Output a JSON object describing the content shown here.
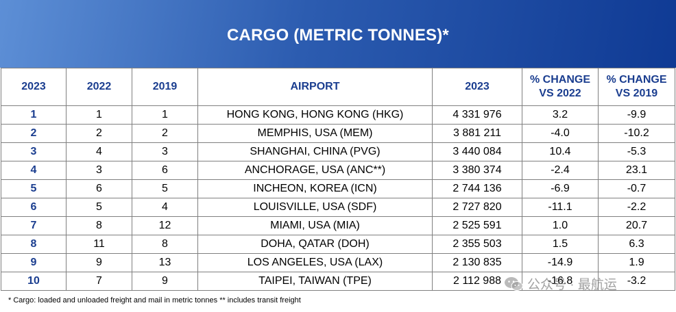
{
  "title": "CARGO (METRIC TONNES)*",
  "columns": [
    "2023",
    "2022",
    "2019",
    "AIRPORT",
    "2023",
    "% CHANGE\nVS 2022",
    "% CHANGE\nVS 2019"
  ],
  "rows": [
    [
      "1",
      "1",
      "1",
      "HONG KONG, HONG KONG (HKG)",
      "4 331 976",
      "3.2",
      "-9.9"
    ],
    [
      "2",
      "2",
      "2",
      "MEMPHIS,  USA (MEM)",
      "3 881 211",
      "-4.0",
      "-10.2"
    ],
    [
      "3",
      "4",
      "3",
      "SHANGHAI, CHINA (PVG)",
      "3 440 084",
      "10.4",
      "-5.3"
    ],
    [
      "4",
      "3",
      "6",
      "ANCHORAGE, USA (ANC**)",
      "3 380 374",
      "-2.4",
      "23.1"
    ],
    [
      "5",
      "6",
      "5",
      "INCHEON, KOREA (ICN)",
      "2 744 136",
      "-6.9",
      "-0.7"
    ],
    [
      "6",
      "5",
      "4",
      "LOUISVILLE,  USA (SDF)",
      "2 727 820",
      "-11.1",
      "-2.2"
    ],
    [
      "7",
      "8",
      "12",
      "MIAMI,  USA (MIA)",
      "2 525 591",
      "1.0",
      "20.7"
    ],
    [
      "8",
      "11",
      "8",
      "DOHA, QATAR (DOH)",
      "2 355 503",
      "1.5",
      "6.3"
    ],
    [
      "9",
      "9",
      "13",
      "LOS ANGELES, USA (LAX)",
      "2 130 835",
      "-14.9",
      "1.9"
    ],
    [
      "10",
      "7",
      "9",
      "TAIPEI, TAIWAN (TPE)",
      "2 112 988",
      "-16.8",
      "-3.2"
    ]
  ],
  "footnote": "* Cargo: loaded and unloaded freight and mail in metric tonnes ** includes transit freight",
  "watermark": "公众号 · 最航运",
  "colors": {
    "header_start": "#5d8fd6",
    "header_end": "#0f3a94",
    "heading_text": "#1a3d8f"
  }
}
